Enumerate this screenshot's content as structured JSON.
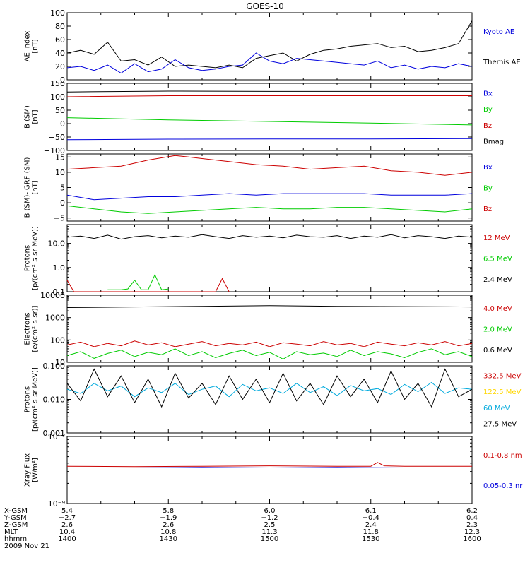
{
  "title": "GOES-10",
  "colors": {
    "black": "#000000",
    "red": "#cc0000",
    "green": "#00cc00",
    "blue": "#0000dd",
    "yellow": "#ffd700",
    "cyan": "#00aadd"
  },
  "chart_data": [
    {
      "type": "line",
      "id": "ae",
      "ylabel": [
        "AE index",
        "[nT]"
      ],
      "yscale": "linear",
      "ylim": [
        0,
        100
      ],
      "yticks": [
        0,
        20,
        40,
        60,
        80,
        100
      ],
      "yticklabels": [
        "0",
        "20",
        "40",
        "60",
        "80",
        "100"
      ],
      "legend": [
        {
          "label": "Kyoto AE",
          "color": "blue"
        },
        {
          "label": "Themis AE",
          "color": "black"
        }
      ],
      "series": [
        {
          "name": "Themis AE",
          "color": "black",
          "x": [
            0,
            2,
            4,
            6,
            8,
            10,
            12,
            14,
            16,
            18,
            20,
            22,
            24,
            26,
            28,
            30,
            32,
            34,
            36,
            38,
            40,
            42,
            44,
            46,
            48,
            50,
            52,
            54,
            56,
            58,
            60
          ],
          "y": [
            40,
            44,
            38,
            56,
            28,
            30,
            22,
            34,
            20,
            22,
            20,
            18,
            22,
            18,
            32,
            36,
            40,
            28,
            38,
            44,
            46,
            50,
            52,
            54,
            48,
            50,
            42,
            44,
            48,
            54,
            88
          ]
        },
        {
          "name": "Kyoto AE",
          "color": "blue",
          "x": [
            0,
            2,
            4,
            6,
            8,
            10,
            12,
            14,
            16,
            18,
            20,
            22,
            24,
            26,
            28,
            30,
            32,
            34,
            36,
            38,
            40,
            42,
            44,
            46,
            48,
            50,
            52,
            54,
            56,
            58,
            60
          ],
          "y": [
            18,
            20,
            14,
            22,
            10,
            24,
            12,
            16,
            30,
            18,
            14,
            16,
            20,
            22,
            40,
            28,
            24,
            32,
            30,
            28,
            26,
            24,
            22,
            28,
            18,
            22,
            16,
            20,
            18,
            24,
            20
          ]
        }
      ]
    },
    {
      "type": "line",
      "id": "bsm",
      "ylabel": [
        "B (SM)",
        "[nT]"
      ],
      "yscale": "linear",
      "ylim": [
        -100,
        150
      ],
      "yticks": [
        -100,
        -50,
        0,
        50,
        100,
        150
      ],
      "yticklabels": [
        "−100",
        "−50",
        "0",
        "50",
        "100",
        "150"
      ],
      "legend": [
        {
          "label": "Bx",
          "color": "blue"
        },
        {
          "label": "By",
          "color": "green"
        },
        {
          "label": "Bz",
          "color": "red"
        },
        {
          "label": "Bmag",
          "color": "black"
        }
      ],
      "series": [
        {
          "name": "Bmag",
          "color": "black",
          "x": [
            0,
            15,
            30,
            45,
            60
          ],
          "y": [
            118,
            121,
            120,
            120,
            120
          ]
        },
        {
          "name": "Bz",
          "color": "red",
          "x": [
            0,
            15,
            30,
            45,
            60
          ],
          "y": [
            100,
            104,
            104,
            104,
            104
          ]
        },
        {
          "name": "By",
          "color": "green",
          "x": [
            0,
            15,
            30,
            45,
            60
          ],
          "y": [
            22,
            14,
            8,
            2,
            -5
          ]
        },
        {
          "name": "Bx",
          "color": "blue",
          "x": [
            0,
            15,
            30,
            45,
            60
          ],
          "y": [
            -60,
            -58,
            -57,
            -57,
            -56
          ]
        }
      ]
    },
    {
      "type": "line",
      "id": "bigrf",
      "ylabel": [
        "B (SM)-IGRF (SM)",
        "[nT]"
      ],
      "yscale": "linear",
      "ylim": [
        -6,
        16
      ],
      "yticks": [
        -5,
        0,
        5,
        10,
        15
      ],
      "yticklabels": [
        "−5",
        "0",
        "5",
        "10",
        "15"
      ],
      "legend": [
        {
          "label": "Bx",
          "color": "blue"
        },
        {
          "label": "By",
          "color": "green"
        },
        {
          "label": "Bz",
          "color": "red"
        }
      ],
      "series": [
        {
          "name": "Bz",
          "color": "red",
          "x": [
            0,
            4,
            8,
            12,
            16,
            18,
            20,
            24,
            28,
            32,
            36,
            40,
            44,
            48,
            52,
            56,
            60
          ],
          "y": [
            11,
            11.5,
            12,
            14,
            15.5,
            15,
            14.5,
            13.5,
            12.5,
            12,
            11,
            11.5,
            12,
            10.5,
            10,
            9,
            10
          ]
        },
        {
          "name": "Bx",
          "color": "blue",
          "x": [
            0,
            4,
            8,
            12,
            16,
            20,
            24,
            28,
            32,
            36,
            40,
            44,
            48,
            52,
            56,
            60
          ],
          "y": [
            2.5,
            1,
            1.5,
            2,
            2,
            2.5,
            3,
            2.5,
            3,
            3,
            3,
            3,
            2.5,
            2.5,
            2.5,
            3
          ]
        },
        {
          "name": "By",
          "color": "green",
          "x": [
            0,
            4,
            8,
            12,
            16,
            20,
            24,
            28,
            32,
            36,
            40,
            44,
            48,
            52,
            56,
            60
          ],
          "y": [
            -1,
            -2,
            -3,
            -3.5,
            -3,
            -2.5,
            -2,
            -1.5,
            -2,
            -2,
            -1.5,
            -1.5,
            -2,
            -2.5,
            -3,
            -2
          ]
        }
      ]
    },
    {
      "type": "line",
      "id": "protons1",
      "ylabel": [
        "Protons",
        "[p/(cm²-s-sr-MeV)]"
      ],
      "yscale": "log",
      "ylim": [
        0.1,
        60
      ],
      "yticks": [
        0.1,
        1,
        10
      ],
      "yticklabels": [
        "0.1",
        "1.0",
        "10.0"
      ],
      "legend": [
        {
          "label": "12 MeV",
          "color": "red"
        },
        {
          "label": "6.5 MeV",
          "color": "green"
        },
        {
          "label": "2.4 MeV",
          "color": "black"
        }
      ],
      "series": [
        {
          "name": "2.4 MeV",
          "color": "black",
          "x": [
            0,
            2,
            4,
            6,
            8,
            10,
            12,
            14,
            16,
            18,
            20,
            22,
            24,
            26,
            28,
            30,
            32,
            34,
            36,
            38,
            40,
            42,
            44,
            46,
            48,
            50,
            52,
            54,
            56,
            58,
            60
          ],
          "y": [
            18,
            20,
            16,
            22,
            15,
            19,
            21,
            17,
            20,
            18,
            23,
            19,
            16,
            21,
            18,
            20,
            17,
            22,
            19,
            18,
            21,
            16,
            20,
            18,
            23,
            17,
            21,
            19,
            16,
            20,
            18
          ]
        },
        {
          "name": "6.5 MeV",
          "color": "green",
          "x": [
            6,
            7,
            8,
            9,
            10,
            11,
            12,
            13,
            14,
            15
          ],
          "y": [
            0.12,
            0.12,
            0.12,
            0.13,
            0.3,
            0.12,
            0.12,
            0.5,
            0.12,
            0.13
          ]
        },
        {
          "name": "12 MeV",
          "color": "red",
          "x": [
            0,
            1,
            2,
            22,
            23,
            24
          ],
          "y": [
            0.3,
            0.1,
            0.1,
            0.1,
            0.35,
            0.1
          ]
        }
      ]
    },
    {
      "type": "line",
      "id": "electrons",
      "ylabel": [
        "Electrons",
        "[e/(cm²-s-sr)]"
      ],
      "yscale": "log",
      "ylim": [
        10,
        10000
      ],
      "yticks": [
        10,
        100,
        1000,
        10000
      ],
      "yticklabels": [
        "10",
        "100",
        "1000",
        "10000"
      ],
      "legend": [
        {
          "label": "4.0 MeV",
          "color": "red"
        },
        {
          "label": "2.0 MeV",
          "color": "green"
        },
        {
          "label": "0.6 MeV",
          "color": "black"
        }
      ],
      "series": [
        {
          "name": "0.6 MeV",
          "color": "black",
          "x": [
            0,
            10,
            20,
            30,
            40,
            50,
            60
          ],
          "y": [
            2800,
            3000,
            3200,
            3400,
            3200,
            3100,
            3000
          ]
        },
        {
          "name": "4.0 MeV",
          "color": "red",
          "x": [
            0,
            2,
            4,
            6,
            8,
            10,
            12,
            14,
            16,
            18,
            20,
            22,
            24,
            26,
            28,
            30,
            32,
            34,
            36,
            38,
            40,
            42,
            44,
            46,
            48,
            50,
            52,
            54,
            56,
            58,
            60
          ],
          "y": [
            60,
            80,
            50,
            70,
            55,
            90,
            60,
            75,
            50,
            65,
            85,
            55,
            70,
            60,
            80,
            50,
            75,
            65,
            55,
            85,
            60,
            70,
            50,
            80,
            65,
            55,
            75,
            60,
            85,
            55,
            70
          ]
        },
        {
          "name": "2.0 MeV",
          "color": "green",
          "x": [
            0,
            2,
            4,
            6,
            8,
            10,
            12,
            14,
            16,
            18,
            20,
            22,
            24,
            26,
            28,
            30,
            32,
            34,
            36,
            38,
            40,
            42,
            44,
            46,
            48,
            50,
            52,
            54,
            56,
            58,
            60
          ],
          "y": [
            20,
            30,
            15,
            25,
            35,
            18,
            28,
            22,
            40,
            20,
            30,
            16,
            25,
            35,
            20,
            28,
            14,
            30,
            22,
            26,
            18,
            35,
            20,
            30,
            24,
            16,
            28,
            40,
            22,
            30,
            18
          ]
        }
      ]
    },
    {
      "type": "line",
      "id": "protons2",
      "ylabel": [
        "Protons",
        "[p/(cm²-s-sr-MeV)]"
      ],
      "yscale": "log",
      "ylim": [
        0.001,
        0.1
      ],
      "yticks": [
        0.001,
        0.01,
        0.1
      ],
      "yticklabels": [
        "0.001",
        "0.010",
        "0.100"
      ],
      "legend": [
        {
          "label": "332.5 MeV",
          "color": "red"
        },
        {
          "label": "122.5 MeV",
          "color": "yellow"
        },
        {
          "label": "60 MeV",
          "color": "cyan"
        },
        {
          "label": "27.5 MeV",
          "color": "black"
        }
      ],
      "series": [
        {
          "name": "60 MeV",
          "color": "cyan",
          "x": [
            0,
            2,
            4,
            6,
            8,
            10,
            12,
            14,
            16,
            18,
            20,
            22,
            24,
            26,
            28,
            30,
            32,
            34,
            36,
            38,
            40,
            42,
            44,
            46,
            48,
            50,
            52,
            54,
            56,
            58,
            60
          ],
          "y": [
            0.02,
            0.015,
            0.03,
            0.018,
            0.025,
            0.012,
            0.022,
            0.016,
            0.03,
            0.014,
            0.02,
            0.025,
            0.012,
            0.028,
            0.018,
            0.022,
            0.015,
            0.03,
            0.016,
            0.024,
            0.013,
            0.026,
            0.018,
            0.021,
            0.014,
            0.028,
            0.017,
            0.032,
            0.015,
            0.022,
            0.02
          ]
        },
        {
          "name": "27.5 MeV",
          "color": "black",
          "x": [
            0,
            2,
            4,
            6,
            8,
            10,
            12,
            14,
            16,
            18,
            20,
            22,
            24,
            26,
            28,
            30,
            32,
            34,
            36,
            38,
            40,
            42,
            44,
            46,
            48,
            50,
            52,
            54,
            56,
            58,
            60
          ],
          "y": [
            0.03,
            0.009,
            0.08,
            0.012,
            0.05,
            0.008,
            0.04,
            0.006,
            0.06,
            0.011,
            0.03,
            0.007,
            0.05,
            0.01,
            0.04,
            0.008,
            0.06,
            0.009,
            0.03,
            0.007,
            0.05,
            0.012,
            0.04,
            0.008,
            0.07,
            0.01,
            0.03,
            0.006,
            0.08,
            0.012,
            0.02
          ]
        }
      ]
    },
    {
      "type": "line",
      "id": "xray",
      "ylabel": [
        "Xray  Flux",
        "[W/m²]"
      ],
      "yscale": "log",
      "ylim": [
        1e-09,
        1e-08
      ],
      "yticks": [
        1e-09,
        1e-08
      ],
      "yticklabels": [
        "10⁻⁹",
        "10⁻⁸"
      ],
      "legend": [
        {
          "label": "0.1-0.8 nm",
          "color": "red"
        },
        {
          "label": "0.05-0.3 nr",
          "color": "blue"
        }
      ],
      "series": [
        {
          "name": "0.1-0.8 nm",
          "color": "red",
          "x": [
            0,
            10,
            20,
            30,
            40,
            45,
            46,
            47,
            50,
            60
          ],
          "y": [
            3.6e-09,
            3.55e-09,
            3.6e-09,
            3.65e-09,
            3.6e-09,
            3.6e-09,
            4.1e-09,
            3.65e-09,
            3.6e-09,
            3.6e-09
          ]
        },
        {
          "name": "0.05-0.3 nr",
          "color": "blue",
          "x": [
            0,
            10,
            20,
            30,
            40,
            50,
            60
          ],
          "y": [
            3.4e-09,
            3.4e-09,
            3.45e-09,
            3.4e-09,
            3.45e-09,
            3.4e-09,
            3.4e-09
          ]
        }
      ]
    }
  ],
  "xaxis": {
    "row_labels": [
      "X-GSM",
      "Y-GSM",
      "Z-GSM",
      "MLT",
      "hhmm"
    ],
    "columns": [
      {
        "x": 0,
        "values": [
          "5.4",
          "−2.7",
          "2.6",
          "10.4",
          "1400"
        ]
      },
      {
        "x": 15,
        "values": [
          "5.8",
          "−1.9",
          "2.6",
          "10.8",
          "1430"
        ]
      },
      {
        "x": 30,
        "values": [
          "6.0",
          "−1.2",
          "2.5",
          "11.3",
          "1500"
        ]
      },
      {
        "x": 45,
        "values": [
          "6.1",
          "−0.4",
          "2.4",
          "11.8",
          "1530"
        ]
      },
      {
        "x": 60,
        "values": [
          "6.2",
          "0.4",
          "2.3",
          "12.3",
          "1600"
        ]
      }
    ],
    "date": "2009 Nov 21"
  }
}
